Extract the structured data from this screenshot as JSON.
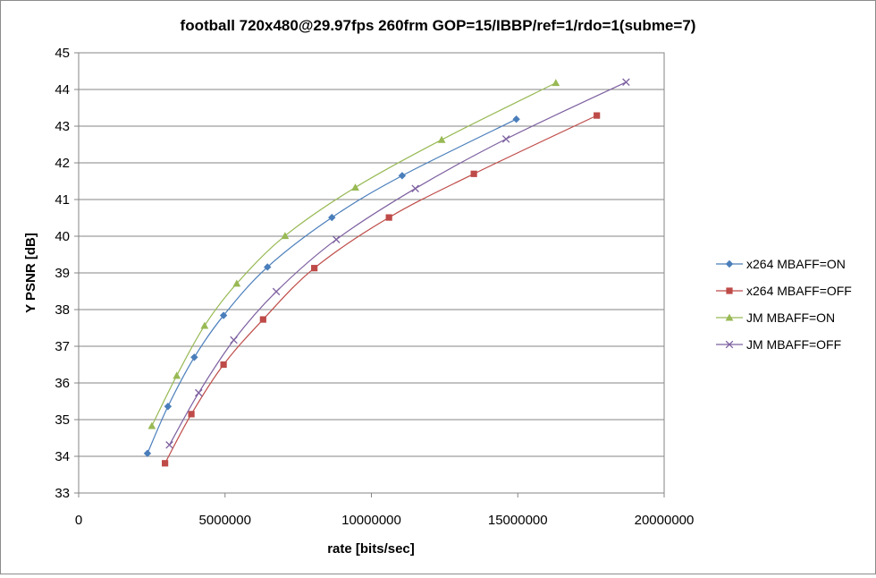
{
  "chart_data": {
    "type": "line",
    "title": "football 720x480@29.97fps  260frm GOP=15/IBBP/ref=1/rdo=1(subme=7)",
    "xlabel": "rate [bits/sec]",
    "ylabel": "Y PSNR [dB]",
    "xlim": [
      0,
      20000000
    ],
    "ylim": [
      33,
      45
    ],
    "x_ticks": [
      0,
      5000000,
      10000000,
      15000000,
      20000000
    ],
    "x_tick_labels": [
      "0",
      "5000000",
      "10000000",
      "15000000",
      "20000000"
    ],
    "y_ticks": [
      33,
      34,
      35,
      36,
      37,
      38,
      39,
      40,
      41,
      42,
      43,
      44,
      45
    ],
    "y_tick_labels": [
      "33",
      "34",
      "35",
      "36",
      "37",
      "38",
      "39",
      "40",
      "41",
      "42",
      "43",
      "44",
      "45"
    ],
    "grid": "horizontal",
    "legend_position": "right",
    "series": [
      {
        "name": "x264 MBAFF=ON",
        "color": "#4a7ebb",
        "marker": "diamond",
        "points": [
          [
            2350000,
            34.08
          ],
          [
            3050000,
            35.36
          ],
          [
            3950000,
            36.7
          ],
          [
            4950000,
            37.84
          ],
          [
            6450000,
            39.16
          ],
          [
            8650000,
            40.51
          ],
          [
            11050000,
            41.65
          ],
          [
            14950000,
            43.19
          ]
        ]
      },
      {
        "name": "x264 MBAFF=OFF",
        "color": "#be4b48",
        "marker": "square",
        "points": [
          [
            2950000,
            33.81
          ],
          [
            3850000,
            35.15
          ],
          [
            4950000,
            36.5
          ],
          [
            6300000,
            37.73
          ],
          [
            8050000,
            39.13
          ],
          [
            10600000,
            40.51
          ],
          [
            13500000,
            41.7
          ],
          [
            17700000,
            43.29
          ]
        ]
      },
      {
        "name": "JM MBAFF=ON",
        "color": "#98b954",
        "marker": "triangle",
        "points": [
          [
            2500000,
            34.83
          ],
          [
            3350000,
            36.2
          ],
          [
            4300000,
            37.56
          ],
          [
            5400000,
            38.71
          ],
          [
            7050000,
            40.01
          ],
          [
            9450000,
            41.33
          ],
          [
            12400000,
            42.63
          ],
          [
            16300000,
            44.18
          ]
        ]
      },
      {
        "name": "JM MBAFF=OFF",
        "color": "#7d60a0",
        "marker": "x",
        "points": [
          [
            3100000,
            34.31
          ],
          [
            4100000,
            35.73
          ],
          [
            5300000,
            37.17
          ],
          [
            6750000,
            38.49
          ],
          [
            8800000,
            39.91
          ],
          [
            11500000,
            41.3
          ],
          [
            14600000,
            42.65
          ],
          [
            18700000,
            44.2
          ]
        ]
      }
    ]
  }
}
